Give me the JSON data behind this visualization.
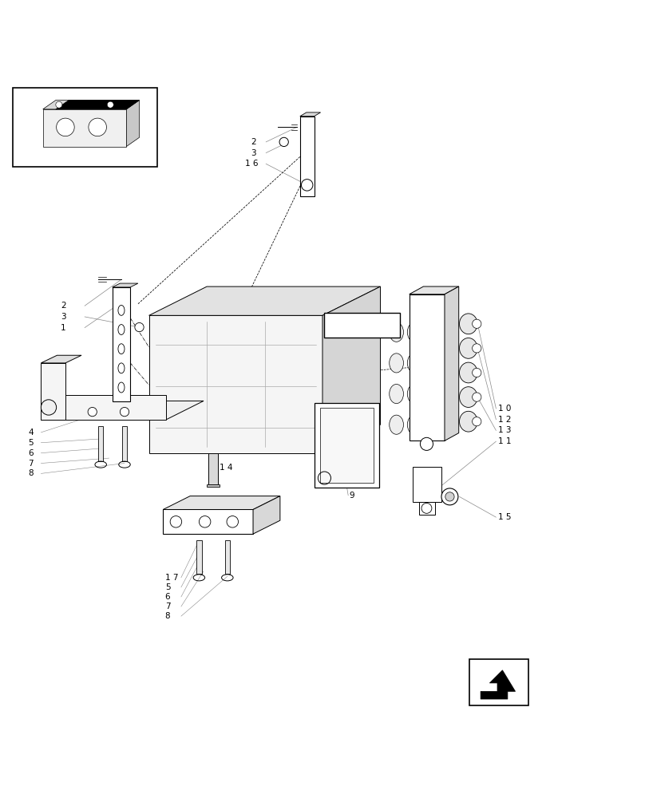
{
  "bg_color": "#ffffff",
  "line_color": "#000000",
  "light_gray": "#aaaaaa",
  "dark_gray": "#555555",
  "fig_width": 8.08,
  "fig_height": 10.0,
  "dpi": 100
}
